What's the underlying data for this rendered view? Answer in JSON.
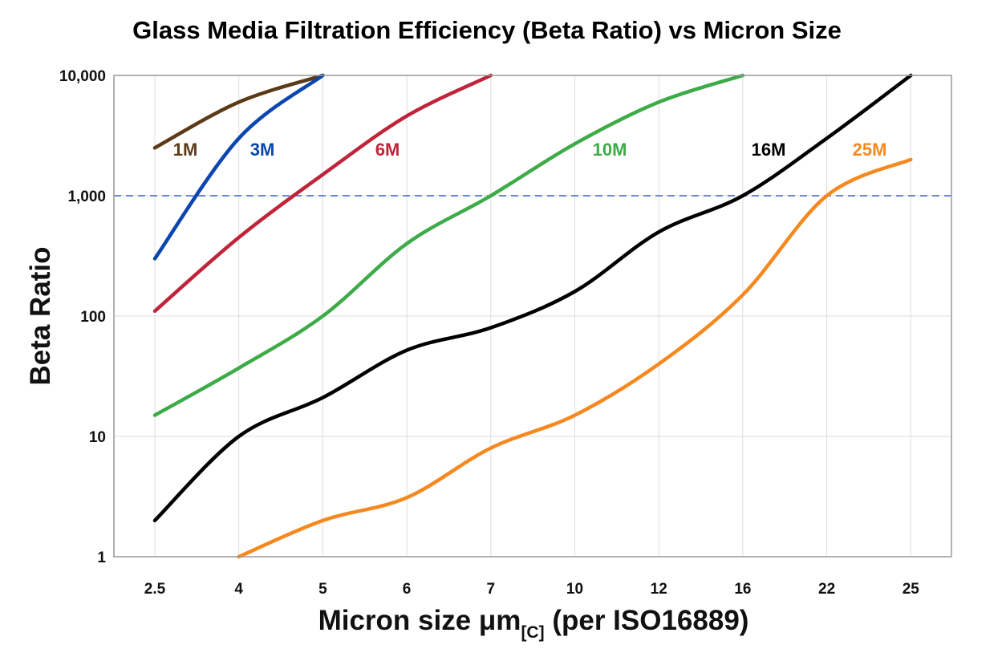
{
  "chart_data": {
    "type": "line",
    "title": "Glass Media Filtration Efficiency (Beta Ratio) vs Micron Size",
    "xlabel_main": "Micron size μm",
    "xlabel_sub": "[C]",
    "xlabel_tail": " (per ISO16889)",
    "ylabel": "Beta Ratio",
    "yscale": "log",
    "ylim": [
      1,
      10000
    ],
    "categories": [
      "2.5",
      "4",
      "5",
      "6",
      "7",
      "10",
      "12",
      "16",
      "22",
      "25"
    ],
    "yticks": [
      1,
      10,
      100,
      1000,
      10000
    ],
    "ytick_labels": [
      "1",
      "10",
      "100",
      "1,000",
      "10,000"
    ],
    "grid": true,
    "reference_line": {
      "value": 1000,
      "style": "dashed",
      "color": "#3a62c4"
    },
    "series": [
      {
        "name": "1M",
        "color": "#5b3a17",
        "values": [
          2500,
          6000,
          10000,
          null,
          null,
          null,
          null,
          null,
          null,
          null
        ]
      },
      {
        "name": "3M",
        "color": "#0b45b0",
        "values": [
          300,
          3000,
          10000,
          null,
          null,
          null,
          null,
          null,
          null,
          null
        ]
      },
      {
        "name": "6M",
        "color": "#c0243a",
        "values": [
          110,
          450,
          1500,
          4600,
          10000,
          null,
          null,
          null,
          null,
          null
        ]
      },
      {
        "name": "10M",
        "color": "#3dab47",
        "values": [
          15,
          37,
          100,
          400,
          1000,
          2700,
          6000,
          10000,
          null,
          null
        ]
      },
      {
        "name": "16M",
        "color": "#000000",
        "values": [
          2,
          10,
          21,
          52,
          80,
          160,
          500,
          1000,
          3000,
          10000
        ]
      },
      {
        "name": "25M",
        "color": "#f5891f",
        "values": [
          null,
          1,
          2,
          3.1,
          8,
          15,
          40,
          150,
          1000,
          2000
        ]
      }
    ]
  }
}
